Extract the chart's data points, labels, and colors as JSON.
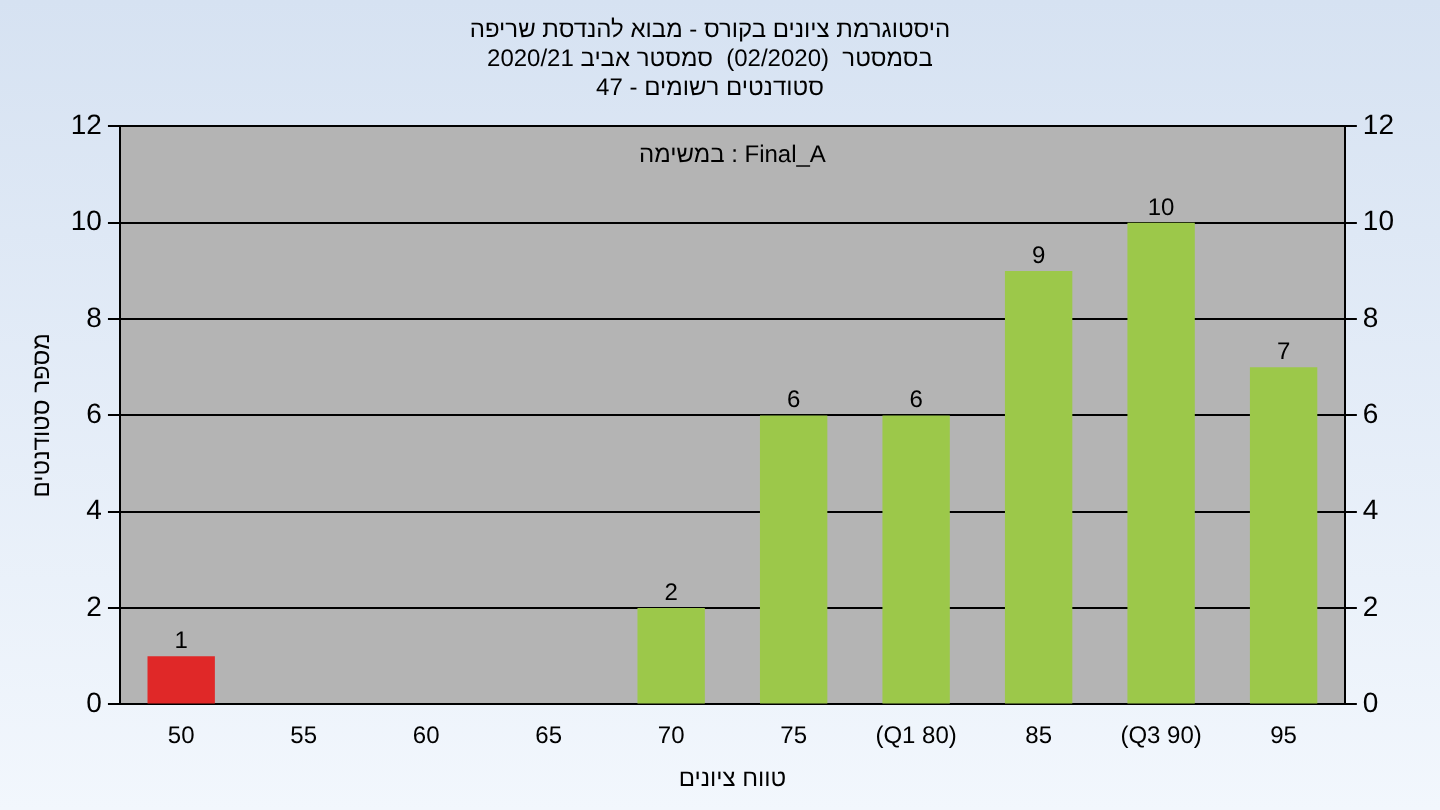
{
  "chart_data": {
    "type": "bar",
    "title": "היסטוגרמת ציונים בקורס - מבוא להנדסת שריפה",
    "subtitle": "בסמסטר  (02/2020)  סמסטר אביב 2020/21\nסטודנטים רשומים - 47",
    "xlabel": "טווח ציונים",
    "ylabel": "מספר סטודנטים",
    "annotations": [
      "Final_A : במשימה"
    ],
    "categories": [
      "50",
      "55",
      "60",
      "65",
      "70",
      "75",
      "(Q1 80)",
      "85",
      "(Q3 90)",
      "95"
    ],
    "values": [
      1,
      0,
      0,
      0,
      2,
      6,
      6,
      9,
      10,
      7
    ],
    "colors": [
      "#e02828",
      "#9cc84a",
      "#9cc84a",
      "#9cc84a",
      "#9cc84a",
      "#9cc84a",
      "#9cc84a",
      "#9cc84a",
      "#9cc84a",
      "#9cc84a"
    ],
    "ylim": [
      0,
      12
    ],
    "yticks": [
      0,
      2,
      4,
      6,
      8,
      10,
      12
    ],
    "y2lim": [
      0,
      12
    ],
    "y2ticks": [
      0,
      2,
      4,
      6,
      8,
      10,
      12
    ],
    "value_labels": [
      "1",
      null,
      null,
      null,
      "2",
      "6",
      "6",
      "9",
      "10",
      "7"
    ],
    "grid": "y",
    "legend": false
  }
}
